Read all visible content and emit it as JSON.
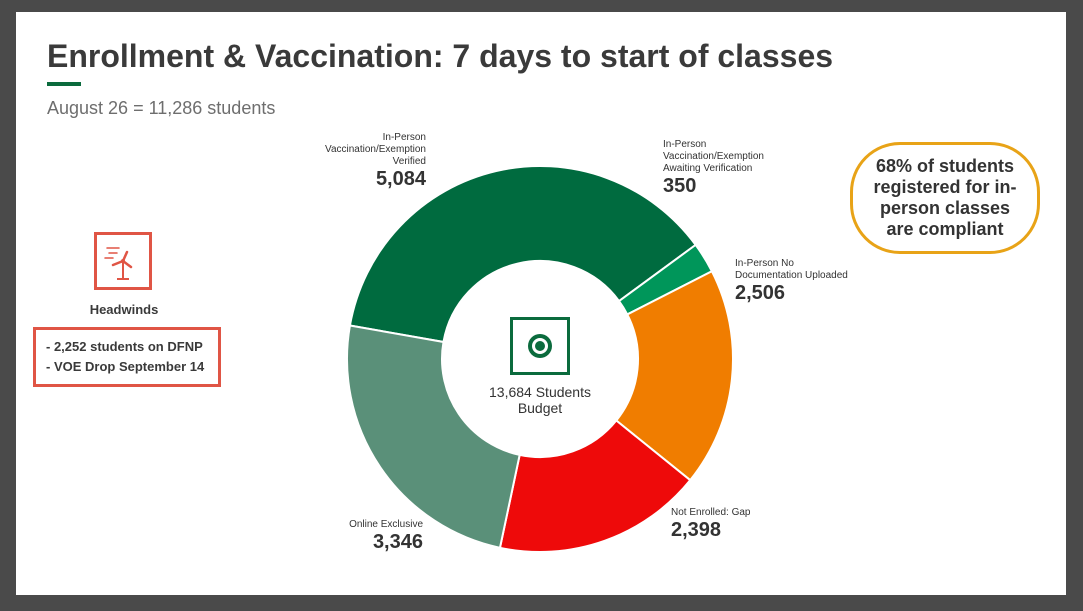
{
  "slide": {
    "title": "Enrollment & Vaccination: 7 days to start of classes",
    "subtitle": "August 26 = 11,286 students"
  },
  "headwinds": {
    "icon": "wind-turbine-icon",
    "label": "Headwinds",
    "items": [
      "- 2,252 students on DFNP",
      "- VOE Drop September 14"
    ]
  },
  "callout": {
    "text": "68% of students registered for in-person classes are compliant"
  },
  "center": {
    "icon": "target-icon",
    "line1": "13,684 Students",
    "line2": "Budget"
  },
  "chart_data": {
    "type": "pie",
    "categories": [
      "In-Person Vaccination/Exemption Verified",
      "In-Person Vaccination/Exemption Awaiting Verification",
      "In-Person No Documentation Uploaded",
      "Not Enrolled: Gap",
      "Online Exclusive"
    ],
    "label_lines": [
      [
        "In-Person",
        "Vaccination/Exemption",
        "Verified"
      ],
      [
        "In-Person",
        "Vaccination/Exemption",
        "Awaiting Verification"
      ],
      [
        "In-Person No",
        "Documentation Uploaded"
      ],
      [
        "Not Enrolled: Gap"
      ],
      [
        "Online Exclusive"
      ]
    ],
    "values": [
      5084,
      350,
      2506,
      2398,
      3346
    ],
    "value_labels": [
      "5,084",
      "350",
      "2,506",
      "2,398",
      "3,346"
    ],
    "colors": [
      "#006b3f",
      "#00965a",
      "#f07d00",
      "#ee0a0a",
      "#5a9079"
    ],
    "start": "left",
    "direction": "clockwise",
    "hole": true
  }
}
